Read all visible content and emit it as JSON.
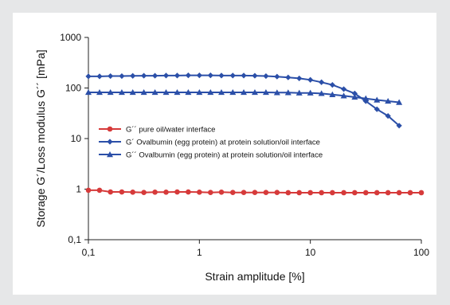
{
  "chart_data": {
    "type": "line",
    "x_scale": "log",
    "y_scale": "log",
    "xlim": [
      0.1,
      100
    ],
    "ylim": [
      0.1,
      1000
    ],
    "xlabel": "Strain amplitude [%]",
    "ylabel": "Storage G´/Loss modulus G´´ [mPa]",
    "x_tick_labels": [
      "0,1",
      "1",
      "10",
      "100"
    ],
    "y_tick_labels": [
      "0,1",
      "1",
      "10",
      "100",
      "1000"
    ],
    "grid": false,
    "legend_position": "center-left",
    "series": [
      {
        "name": "G´´ pure oil/water interface",
        "color": "#d63a3a",
        "marker": "circle",
        "x": [
          0.1,
          0.126,
          0.158,
          0.2,
          0.251,
          0.316,
          0.398,
          0.501,
          0.631,
          0.794,
          1.0,
          1.26,
          1.58,
          2.0,
          2.51,
          3.16,
          3.98,
          5.01,
          6.31,
          7.94,
          10.0,
          12.6,
          15.8,
          20.0,
          25.1,
          31.6,
          39.8,
          50.1,
          63.1,
          79.4,
          100
        ],
        "y": [
          0.95,
          0.95,
          0.88,
          0.88,
          0.87,
          0.86,
          0.87,
          0.87,
          0.88,
          0.88,
          0.87,
          0.86,
          0.87,
          0.86,
          0.86,
          0.86,
          0.86,
          0.86,
          0.85,
          0.85,
          0.85,
          0.85,
          0.85,
          0.85,
          0.85,
          0.85,
          0.85,
          0.85,
          0.85,
          0.85,
          0.85
        ]
      },
      {
        "name": "G´ Ovalbumin (egg protein) at protein solution/oil interface",
        "color": "#2b4fa8",
        "marker": "diamond",
        "x": [
          0.1,
          0.126,
          0.158,
          0.2,
          0.251,
          0.316,
          0.398,
          0.501,
          0.631,
          0.794,
          1.0,
          1.26,
          1.58,
          2.0,
          2.51,
          3.16,
          3.98,
          5.01,
          6.31,
          7.94,
          10.0,
          12.6,
          15.8,
          20.0,
          25.1,
          31.6,
          39.8,
          50.1,
          63.1
        ],
        "y": [
          170,
          170,
          172,
          172,
          174,
          175,
          175,
          176,
          176,
          178,
          178,
          178,
          176,
          176,
          176,
          175,
          172,
          168,
          162,
          155,
          145,
          130,
          115,
          95,
          78,
          55,
          38,
          28,
          18
        ]
      },
      {
        "name": "G´´ Ovalbumin (egg protein) at protein solution/oil interface",
        "color": "#2b4fa8",
        "marker": "triangle",
        "x": [
          0.1,
          0.126,
          0.158,
          0.2,
          0.251,
          0.316,
          0.398,
          0.501,
          0.631,
          0.794,
          1.0,
          1.26,
          1.58,
          2.0,
          2.51,
          3.16,
          3.98,
          5.01,
          6.31,
          7.94,
          10.0,
          12.6,
          15.8,
          20.0,
          25.1,
          31.6,
          39.8,
          50.1,
          63.1
        ],
        "y": [
          82,
          82,
          82,
          82,
          82,
          82,
          82,
          82,
          82,
          82,
          82,
          82,
          82,
          82,
          82,
          82,
          82,
          81,
          81,
          80,
          80,
          78,
          74,
          70,
          66,
          62,
          58,
          55,
          52
        ]
      }
    ]
  }
}
